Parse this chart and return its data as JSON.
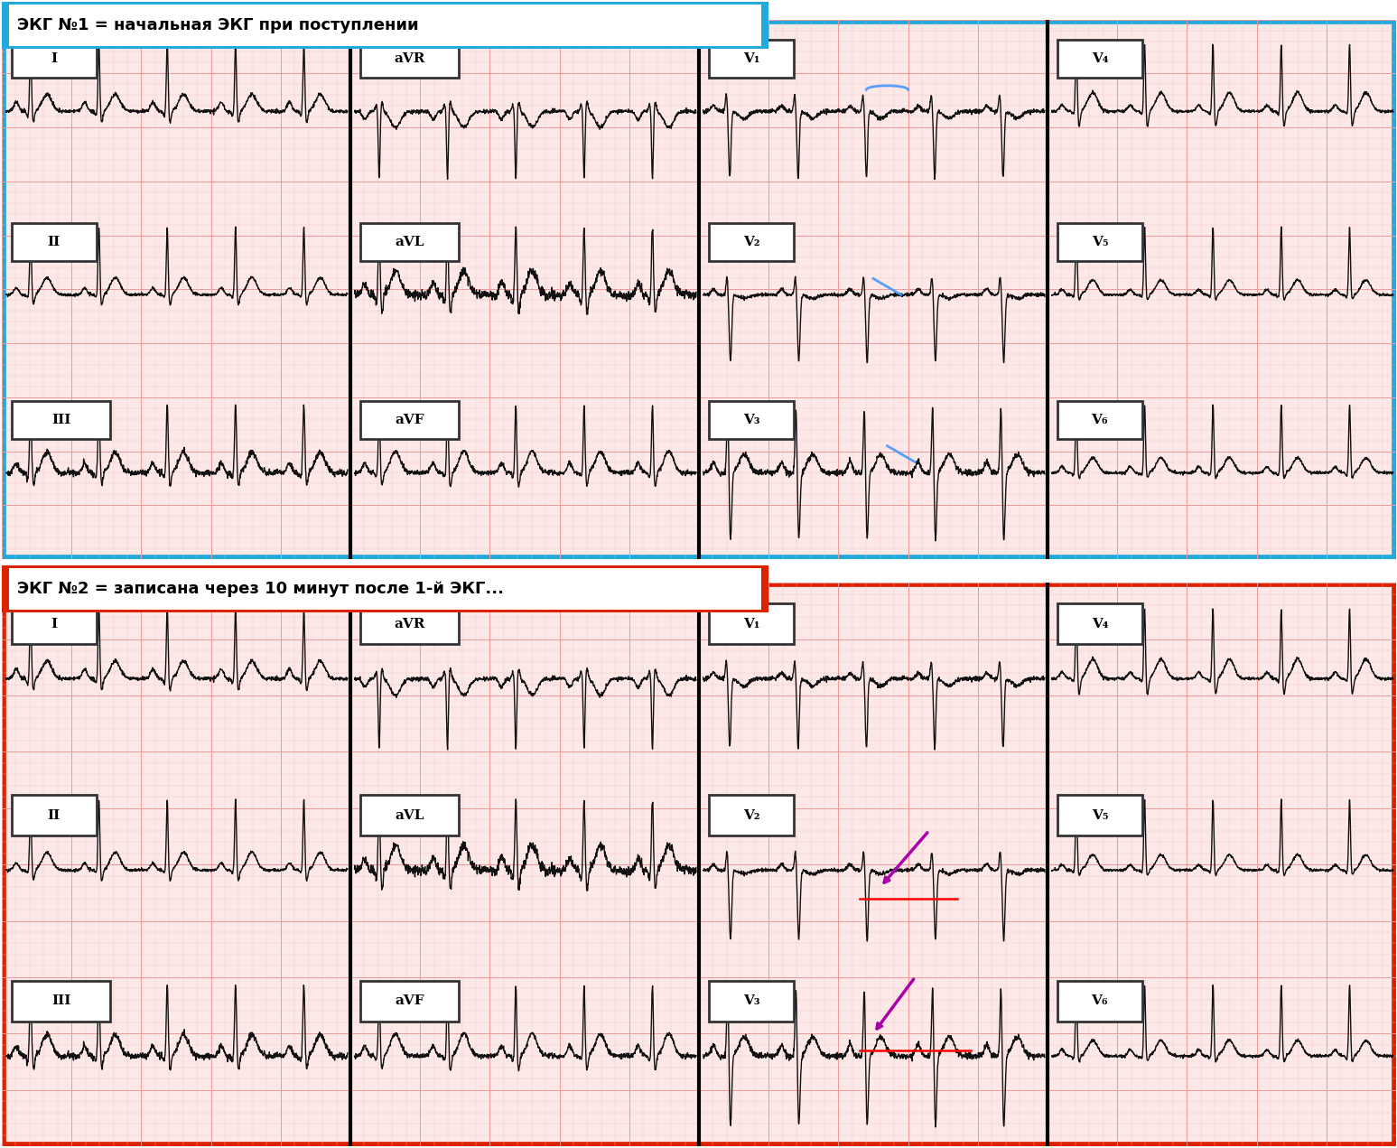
{
  "title1": "ЭКГ №1 = начальная ЭКГ при поступлении",
  "title2": "ЭКГ №2 = записана через 10 минут после 1-й ЭКГ...",
  "box1_color": "#22AADD",
  "box2_color": "#DD2200",
  "bg_pink": "#FDE8E8",
  "grid_minor_color": "#F5BBBB",
  "grid_major_color": "#EE9999",
  "ecg_color": "#111111",
  "outer_bg": "#FFFFFF",
  "leads_panel1": [
    [
      "I",
      "aVR",
      "V1",
      "V4"
    ],
    [
      "II",
      "aVL",
      "V2",
      "V5"
    ],
    [
      "III",
      "aVF",
      "V3",
      "V6"
    ]
  ],
  "leads_panel2": [
    [
      "I",
      "aVR",
      "V1",
      "V4"
    ],
    [
      "II",
      "aVL",
      "V2",
      "V5"
    ],
    [
      "III",
      "aVF",
      "V3",
      "V6"
    ]
  ],
  "lead_display": {
    "I": "I",
    "II": "II",
    "III": "III",
    "aVR": "aVR",
    "aVL": "aVL",
    "aVF": "aVF",
    "V1": "V₁",
    "V2": "V₂",
    "V3": "V₃",
    "V4": "V₄",
    "V5": "V₅",
    "V6": "V₆"
  }
}
